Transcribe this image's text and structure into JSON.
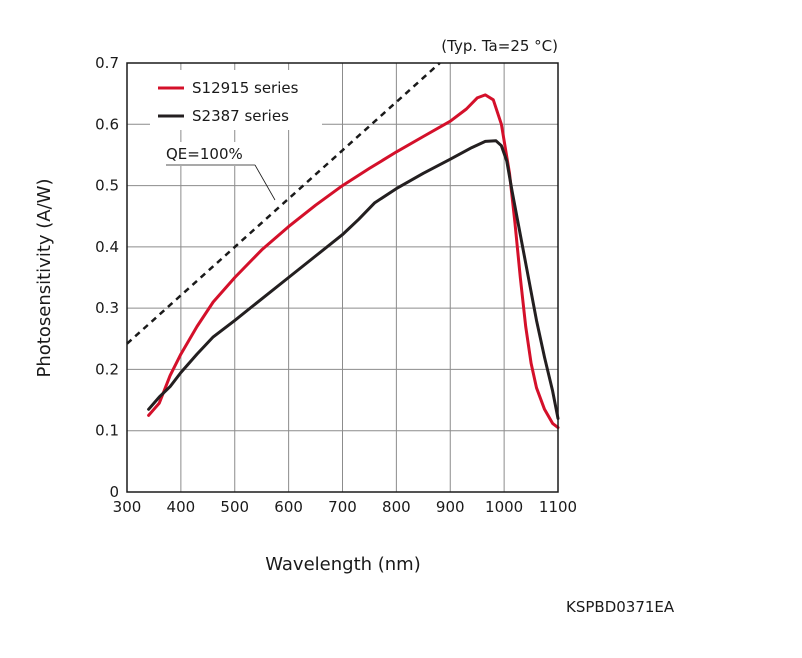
{
  "chart_data": {
    "type": "line",
    "note": "(Typ. Ta=25 °C)",
    "xlabel": "Wavelength (nm)",
    "ylabel": "Photosensitivity (A/W)",
    "xlim": [
      300,
      1100
    ],
    "ylim": [
      0,
      0.7
    ],
    "x_ticks": [
      "300",
      "400",
      "500",
      "600",
      "700",
      "800",
      "900",
      "1000",
      "1100"
    ],
    "y_ticks": [
      "0",
      "0.1",
      "0.2",
      "0.3",
      "0.4",
      "0.5",
      "0.6",
      "0.7"
    ],
    "grid": true,
    "legend_position": "top-left",
    "annotation": "QE=100%",
    "series": [
      {
        "name": "S12915 series",
        "color": "#d4102a",
        "points": [
          [
            340,
            0.125
          ],
          [
            350,
            0.135
          ],
          [
            360,
            0.145
          ],
          [
            380,
            0.19
          ],
          [
            400,
            0.225
          ],
          [
            430,
            0.27
          ],
          [
            460,
            0.31
          ],
          [
            500,
            0.35
          ],
          [
            550,
            0.395
          ],
          [
            600,
            0.433
          ],
          [
            650,
            0.468
          ],
          [
            700,
            0.5
          ],
          [
            750,
            0.528
          ],
          [
            800,
            0.555
          ],
          [
            850,
            0.58
          ],
          [
            900,
            0.605
          ],
          [
            930,
            0.625
          ],
          [
            950,
            0.643
          ],
          [
            965,
            0.648
          ],
          [
            980,
            0.64
          ],
          [
            995,
            0.6
          ],
          [
            1010,
            0.52
          ],
          [
            1020,
            0.44
          ],
          [
            1030,
            0.35
          ],
          [
            1040,
            0.27
          ],
          [
            1050,
            0.21
          ],
          [
            1060,
            0.17
          ],
          [
            1075,
            0.135
          ],
          [
            1090,
            0.112
          ],
          [
            1100,
            0.105
          ]
        ]
      },
      {
        "name": "S2387 series",
        "color": "#231f20",
        "points": [
          [
            340,
            0.135
          ],
          [
            360,
            0.155
          ],
          [
            380,
            0.172
          ],
          [
            400,
            0.195
          ],
          [
            430,
            0.225
          ],
          [
            460,
            0.253
          ],
          [
            500,
            0.28
          ],
          [
            550,
            0.315
          ],
          [
            600,
            0.35
          ],
          [
            650,
            0.385
          ],
          [
            700,
            0.42
          ],
          [
            730,
            0.445
          ],
          [
            760,
            0.472
          ],
          [
            800,
            0.495
          ],
          [
            850,
            0.52
          ],
          [
            900,
            0.543
          ],
          [
            940,
            0.562
          ],
          [
            965,
            0.572
          ],
          [
            985,
            0.573
          ],
          [
            995,
            0.565
          ],
          [
            1005,
            0.54
          ],
          [
            1015,
            0.49
          ],
          [
            1030,
            0.42
          ],
          [
            1045,
            0.35
          ],
          [
            1060,
            0.28
          ],
          [
            1075,
            0.22
          ],
          [
            1090,
            0.165
          ],
          [
            1100,
            0.12
          ]
        ]
      },
      {
        "name": "",
        "color": "#1a1a1a",
        "dashed": true,
        "points": [
          [
            300,
            0.2419
          ],
          [
            880.6,
            0.7
          ]
        ]
      }
    ]
  },
  "footer": {
    "code": "KSPBD0371EA"
  }
}
